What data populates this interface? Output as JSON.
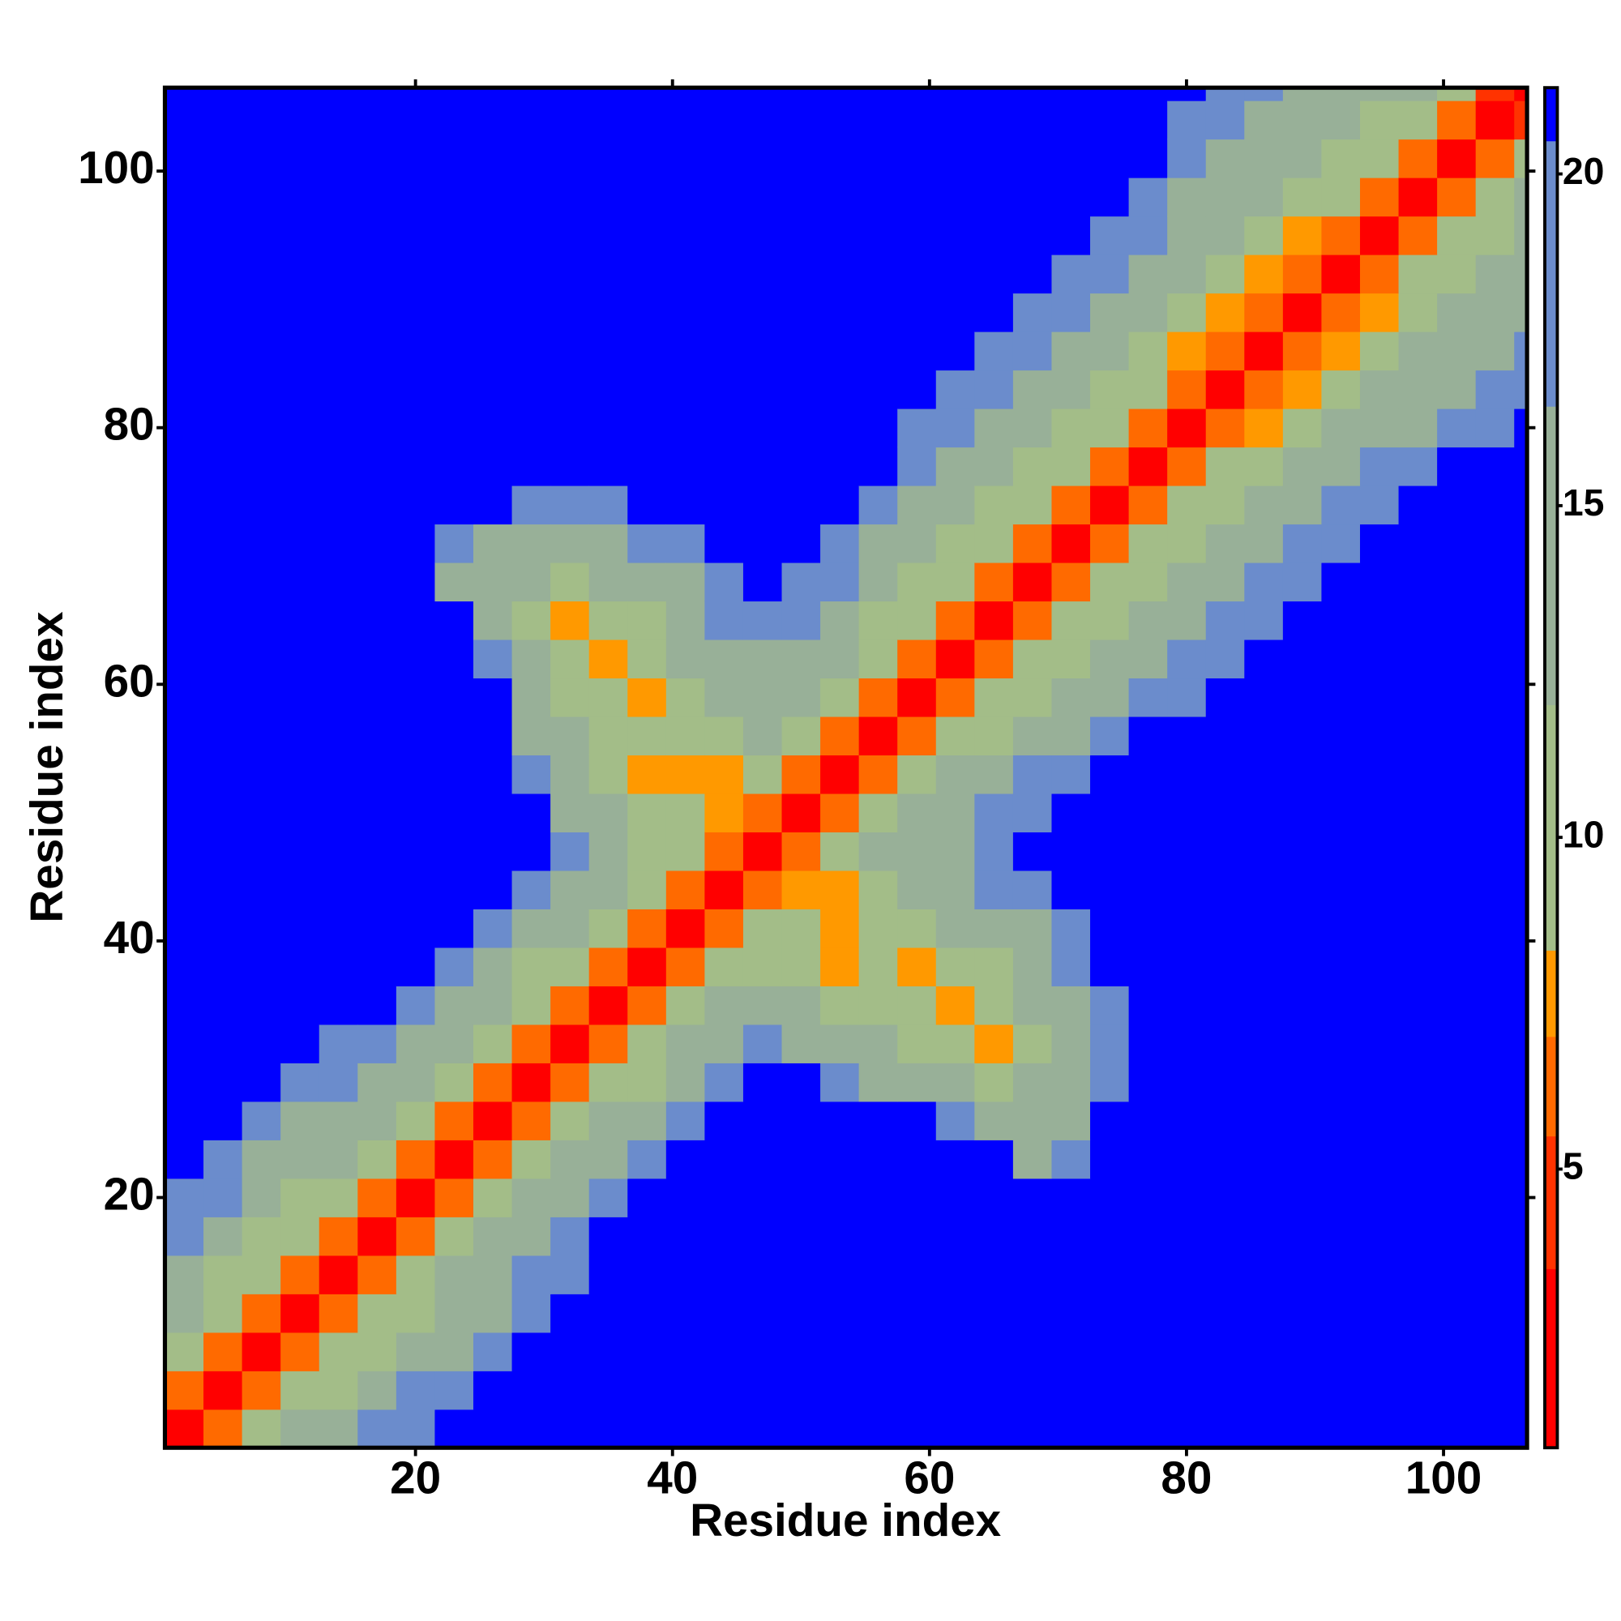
{
  "chart_data": {
    "type": "heatmap",
    "xlabel": "Residue index",
    "ylabel": "Residue index",
    "xlim": [
      0.5,
      106.5
    ],
    "ylim": [
      0.5,
      106.5
    ],
    "xticks": [
      20,
      40,
      60,
      80,
      100
    ],
    "yticks": [
      20,
      40,
      60,
      80,
      100
    ],
    "bins": [
      0.5,
      3.5,
      6.5,
      9.5,
      12.5,
      15.5,
      18.5,
      21.5,
      24.5,
      27.5,
      30.5,
      33.5,
      36.5,
      39.5,
      42.5,
      45.5,
      48.5,
      51.5,
      54.5,
      57.5,
      60.5,
      63.5,
      66.5,
      69.5,
      72.5,
      75.5,
      78.5,
      81.5,
      84.5,
      87.5,
      90.5,
      93.5,
      96.5,
      99.5,
      102.5,
      105.5,
      106.5
    ],
    "symmetric": true,
    "levels": [
      0.8,
      3.5,
      5.5,
      7,
      8.3,
      12,
      16.5,
      20.5,
      21.3
    ],
    "colors": [
      "#ff0000",
      "#ff3300",
      "#ff6a00",
      "#ff9900",
      "#a3bd88",
      "#98b098",
      "#6b8ccc",
      "#0000ff"
    ],
    "cticks": [
      5,
      10,
      15,
      20
    ],
    "z": [
      [
        1.5,
        5.5,
        9,
        12,
        14,
        17,
        19,
        21,
        21,
        21,
        21,
        21,
        21,
        21,
        21,
        21,
        21,
        21,
        21,
        21,
        21,
        21,
        21,
        21,
        21,
        21,
        21,
        21,
        21,
        21,
        21,
        21,
        21,
        21,
        21,
        21
      ],
      [
        1.5,
        5.5,
        8.5,
        11,
        14,
        17,
        19,
        21,
        21,
        21,
        21,
        21,
        21,
        21,
        21,
        21,
        21,
        21,
        21,
        21,
        21,
        21,
        21,
        21,
        21,
        21,
        21,
        21,
        21,
        21,
        21,
        21,
        21,
        21,
        21
      ],
      [
        1.5,
        5.5,
        8.5,
        11,
        13,
        16,
        19,
        21,
        21,
        21,
        21,
        21,
        21,
        21,
        21,
        21,
        21,
        21,
        21,
        21,
        21,
        21,
        21,
        21,
        21,
        21,
        21,
        21,
        21,
        21,
        21,
        21,
        21,
        21
      ],
      [
        1.5,
        5.5,
        8.5,
        11,
        13,
        16,
        19,
        21,
        21,
        21,
        21,
        21,
        21,
        21,
        21,
        21,
        21,
        21,
        21,
        21,
        21,
        21,
        21,
        21,
        21,
        21,
        21,
        21,
        21,
        21,
        21,
        21,
        21
      ],
      [
        1.5,
        6,
        9,
        12,
        14,
        17,
        20,
        21,
        21,
        21,
        21,
        21,
        21,
        21,
        21,
        21,
        21,
        21,
        21,
        21,
        21,
        21,
        21,
        21,
        21,
        21,
        21,
        21,
        21,
        21,
        21,
        21
      ],
      [
        1.5,
        5.5,
        9,
        12,
        15,
        18,
        21,
        21,
        21,
        21,
        21,
        21,
        21,
        21,
        21,
        21,
        21,
        21,
        21,
        21,
        21,
        21,
        21,
        21,
        21,
        21,
        21,
        21,
        21,
        21,
        21
      ],
      [
        1.5,
        5.5,
        9,
        12,
        15,
        18,
        21,
        21,
        21,
        21,
        21,
        21,
        21,
        21,
        21,
        21,
        21,
        21,
        21,
        21,
        21,
        21,
        21,
        21,
        21,
        21,
        21,
        21,
        21,
        21
      ],
      [
        1.5,
        5.5,
        9,
        12,
        15,
        18,
        21,
        21,
        21,
        21,
        21,
        21,
        21,
        21,
        21,
        16,
        17,
        21,
        21,
        21,
        21,
        21,
        21,
        21,
        21,
        21,
        21,
        21,
        21
      ],
      [
        1.5,
        5.5,
        9,
        12,
        15,
        18,
        21,
        21,
        21,
        21,
        21,
        21,
        18,
        15,
        14,
        16,
        21,
        21,
        21,
        21,
        21,
        21,
        21,
        21,
        21,
        21,
        21,
        21
      ],
      [
        1.5,
        5.5,
        8.5,
        11,
        14,
        17,
        21,
        21,
        18,
        15,
        13,
        12,
        10,
        13,
        15,
        18,
        21,
        21,
        21,
        21,
        21,
        21,
        21,
        21,
        21,
        21,
        21
      ],
      [
        1.5,
        5.5,
        9,
        12,
        14,
        17,
        16,
        13,
        12,
        11,
        9,
        7,
        11,
        14,
        18,
        21,
        21,
        21,
        21,
        21,
        21,
        21,
        21,
        21,
        21,
        21
      ],
      [
        1.5,
        5.5,
        9,
        12,
        14,
        12,
        11,
        10,
        9,
        7.5,
        10,
        12,
        15,
        19,
        21,
        21,
        21,
        21,
        21,
        21,
        21,
        21,
        21,
        21,
        21
      ],
      [
        1.5,
        5.5,
        9,
        11,
        9,
        8,
        10,
        7,
        9,
        11,
        14,
        17,
        21,
        21,
        21,
        21,
        21,
        21,
        21,
        21,
        21,
        21,
        21,
        21
      ],
      [
        1.5,
        5.5,
        8.5,
        10,
        7.5,
        9,
        11,
        12,
        13,
        16,
        19,
        21,
        21,
        21,
        21,
        21,
        21,
        21,
        21,
        21,
        21,
        21,
        21
      ],
      [
        1.5,
        5.5,
        8,
        7.5,
        10,
        12,
        15,
        17,
        19,
        21,
        21,
        21,
        21,
        21,
        21,
        21,
        21,
        21,
        21,
        21,
        21,
        21
      ],
      [
        1.5,
        5.5,
        9,
        12,
        14,
        16,
        19,
        21,
        21,
        21,
        21,
        21,
        21,
        21,
        21,
        21,
        21,
        21,
        21,
        21,
        21
      ],
      [
        1.5,
        5.5,
        9,
        12,
        15,
        17,
        19,
        21,
        21,
        21,
        21,
        21,
        21,
        21,
        21,
        21,
        21,
        21,
        21,
        21
      ],
      [
        1.5,
        5.5,
        9,
        12,
        15,
        17,
        19,
        21,
        21,
        21,
        21,
        21,
        21,
        21,
        21,
        21,
        21,
        21,
        21
      ],
      [
        1.5,
        5.5,
        8.5,
        11,
        14,
        16,
        18,
        21,
        21,
        21,
        21,
        21,
        21,
        21,
        21,
        21,
        21,
        21
      ],
      [
        1.5,
        5.5,
        8.5,
        11,
        14,
        16,
        18,
        20,
        21,
        21,
        21,
        21,
        21,
        21,
        21,
        21,
        21
      ],
      [
        1.5,
        5.5,
        8.5,
        11,
        14,
        16,
        18,
        20,
        21,
        21,
        21,
        21,
        21,
        21,
        21,
        21
      ],
      [
        1.5,
        5.5,
        8.5,
        11,
        13,
        15,
        17,
        19,
        21,
        21,
        21,
        21,
        21,
        21,
        21
      ],
      [
        1.5,
        5.5,
        8.5,
        10.5,
        13,
        15,
        17,
        19,
        21,
        21,
        21,
        21,
        21,
        21
      ],
      [
        1.5,
        6,
        8.5,
        10.5,
        13,
        15,
        17,
        19,
        20.5,
        21,
        21,
        21,
        21
      ],
      [
        1.5,
        6,
        8.5,
        10.5,
        12.5,
        15,
        17,
        19,
        20.5,
        21,
        21,
        21
      ],
      [
        1.5,
        6,
        8.5,
        10.5,
        12.5,
        14.5,
        16.5,
        18.5,
        20.5,
        21,
        21
      ],
      [
        1.5,
        6,
        8,
        10,
        12,
        14,
        16,
        18,
        20,
        21
      ],
      [
        1.5,
        6,
        8,
        10,
        12,
        14,
        16,
        18,
        20
      ],
      [
        1.5,
        6,
        7.5,
        10,
        12,
        14,
        16,
        18
      ],
      [
        1.5,
        6,
        8,
        10,
        12,
        14,
        16
      ],
      [
        1.5,
        5.5,
        8.5,
        11,
        13,
        15
      ],
      [
        1.5,
        5.5,
        9,
        11,
        14
      ],
      [
        1.5,
        5.5,
        9,
        12
      ],
      [
        1.5,
        5.5,
        9
      ],
      [
        1.5,
        4.5
      ],
      [
        1.5
      ]
    ]
  }
}
